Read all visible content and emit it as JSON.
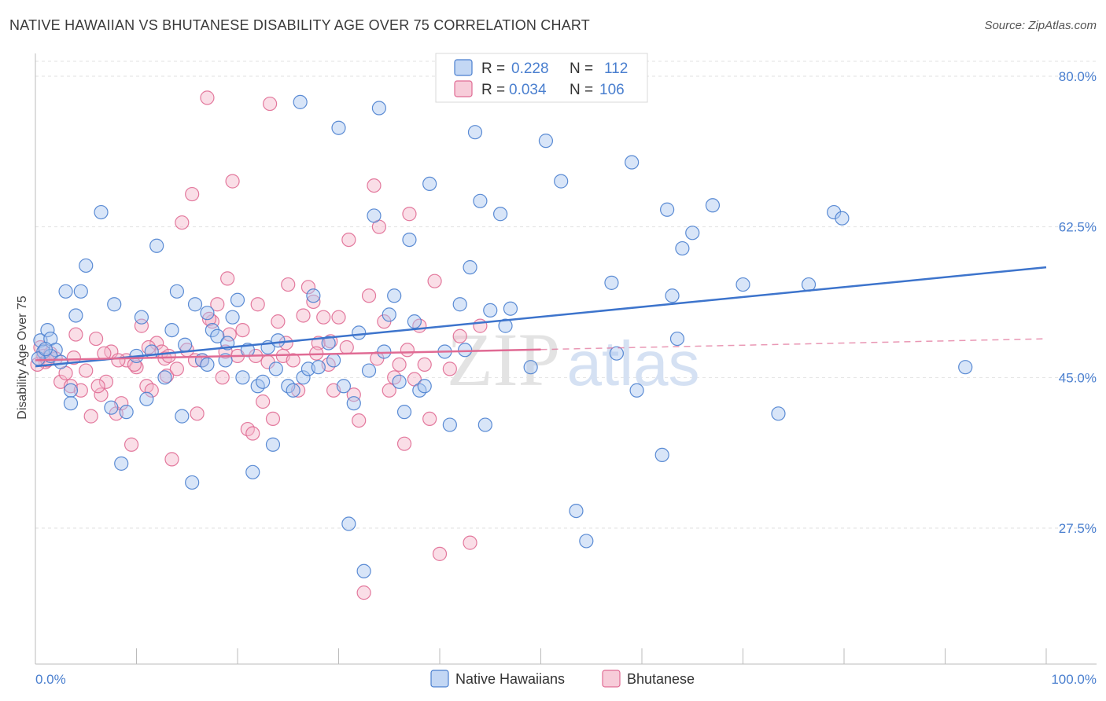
{
  "title": "NATIVE HAWAIIAN VS BHUTANESE DISABILITY AGE OVER 75 CORRELATION CHART",
  "source": "Source: ZipAtlas.com",
  "watermark": {
    "zip": "ZIP",
    "atlas": "atlas"
  },
  "colors": {
    "blue": "#4a7fcf",
    "blue_fill": "#a9c6ef",
    "pink": "#e06b94",
    "pink_fill": "#f4b6c9"
  },
  "legend": {
    "rows": [
      {
        "r_label": "R =",
        "r_value": "0.228",
        "n_label": "N =",
        "n_value": "112"
      },
      {
        "r_label": "R =",
        "r_value": "0.034",
        "n_label": "N =",
        "n_value": "106"
      }
    ]
  },
  "chart_data": {
    "type": "scatter",
    "ylabel": "Disability Age Over 75",
    "xlim": [
      0,
      100
    ],
    "ylim": [
      13.5,
      82
    ],
    "x_tick_labels": [
      "0.0%",
      "100.0%"
    ],
    "y_ticks": [
      {
        "value": 80.0,
        "label": "80.0%"
      },
      {
        "value": 62.5,
        "label": "62.5%"
      },
      {
        "value": 45.0,
        "label": "45.0%"
      },
      {
        "value": 27.5,
        "label": "27.5%"
      }
    ],
    "series": [
      {
        "name": "Native Hawaiians",
        "trend": {
          "x0": 0,
          "y0": 46.3,
          "x1": 100,
          "y1": 57.8,
          "solid_to": 100
        },
        "points": [
          [
            0.5,
            49.3
          ],
          [
            0.8,
            48.0
          ],
          [
            1.2,
            50.5
          ],
          [
            1.5,
            49.5
          ],
          [
            2.0,
            48.2
          ],
          [
            3.0,
            55.0
          ],
          [
            3.5,
            43.5
          ],
          [
            4.0,
            52.2
          ],
          [
            4.5,
            55.0
          ],
          [
            5.0,
            58.0
          ],
          [
            3.5,
            42.0
          ],
          [
            6.5,
            64.2
          ],
          [
            7.5,
            41.5
          ],
          [
            7.8,
            53.5
          ],
          [
            8.5,
            35.0
          ],
          [
            9.0,
            41.0
          ],
          [
            10.0,
            47.5
          ],
          [
            10.5,
            52.0
          ],
          [
            11.0,
            42.5
          ],
          [
            12.0,
            60.3
          ],
          [
            11.5,
            48.0
          ],
          [
            12.8,
            45.0
          ],
          [
            13.5,
            50.5
          ],
          [
            14.0,
            55.0
          ],
          [
            14.5,
            40.5
          ],
          [
            14.8,
            48.8
          ],
          [
            15.5,
            32.8
          ],
          [
            15.8,
            53.5
          ],
          [
            16.5,
            47.0
          ],
          [
            17.0,
            52.5
          ],
          [
            17.5,
            50.5
          ],
          [
            18.0,
            49.8
          ],
          [
            18.8,
            47.0
          ],
          [
            19.0,
            49.0
          ],
          [
            19.5,
            52.0
          ],
          [
            20.0,
            54.0
          ],
          [
            20.5,
            45.0
          ],
          [
            21.0,
            48.2
          ],
          [
            21.5,
            34.0
          ],
          [
            22.0,
            44.0
          ],
          [
            22.5,
            44.5
          ],
          [
            23.0,
            48.5
          ],
          [
            23.5,
            37.2
          ],
          [
            23.8,
            46.0
          ],
          [
            24.0,
            49.3
          ],
          [
            25.0,
            44.0
          ],
          [
            25.5,
            43.5
          ],
          [
            26.2,
            77.0
          ],
          [
            26.5,
            45.0
          ],
          [
            27.0,
            46.0
          ],
          [
            27.5,
            54.5
          ],
          [
            28.0,
            46.2
          ],
          [
            29.0,
            49.0
          ],
          [
            29.5,
            47.0
          ],
          [
            30.0,
            74.0
          ],
          [
            30.5,
            44.0
          ],
          [
            31.0,
            28.0
          ],
          [
            31.5,
            42.0
          ],
          [
            32.0,
            50.2
          ],
          [
            32.5,
            22.5
          ],
          [
            33.0,
            45.8
          ],
          [
            33.5,
            63.8
          ],
          [
            34.0,
            76.3
          ],
          [
            34.5,
            48.0
          ],
          [
            35.0,
            52.3
          ],
          [
            35.5,
            54.5
          ],
          [
            36.5,
            41.0
          ],
          [
            37.0,
            61.0
          ],
          [
            37.5,
            51.5
          ],
          [
            38.0,
            43.5
          ],
          [
            38.5,
            44.0
          ],
          [
            39.0,
            67.5
          ],
          [
            40.5,
            48.0
          ],
          [
            41.0,
            39.5
          ],
          [
            42.0,
            53.5
          ],
          [
            42.5,
            48.2
          ],
          [
            43.0,
            57.8
          ],
          [
            43.5,
            73.5
          ],
          [
            44.0,
            65.5
          ],
          [
            44.5,
            39.5
          ],
          [
            45.0,
            52.8
          ],
          [
            46.0,
            64.0
          ],
          [
            46.5,
            51.0
          ],
          [
            47.0,
            53.0
          ],
          [
            49.0,
            46.2
          ],
          [
            50.5,
            72.5
          ],
          [
            52.0,
            67.8
          ],
          [
            53.5,
            29.5
          ],
          [
            54.5,
            26.0
          ],
          [
            57.0,
            56.0
          ],
          [
            57.5,
            47.8
          ],
          [
            59.0,
            70.0
          ],
          [
            59.5,
            43.5
          ],
          [
            62.0,
            36.0
          ],
          [
            62.5,
            64.5
          ],
          [
            63.0,
            54.5
          ],
          [
            63.5,
            49.5
          ],
          [
            64.0,
            60.0
          ],
          [
            65.0,
            61.8
          ],
          [
            67.0,
            65.0
          ],
          [
            70.0,
            55.8
          ],
          [
            73.5,
            40.8
          ],
          [
            76.5,
            55.8
          ],
          [
            79.0,
            64.2
          ],
          [
            79.8,
            63.5
          ],
          [
            92.0,
            46.2
          ],
          [
            1.5,
            47.5
          ],
          [
            2.5,
            46.8
          ],
          [
            0.3,
            47.2
          ],
          [
            1.0,
            48.3
          ],
          [
            36.0,
            44.5
          ],
          [
            17.0,
            46.5
          ]
        ]
      },
      {
        "name": "Bhutanese",
        "trend": {
          "x0": 0,
          "y0": 47.0,
          "x1": 100,
          "y1": 49.5,
          "solid_to": 50
        },
        "points": [
          [
            0.5,
            48.5
          ],
          [
            0.8,
            47.5
          ],
          [
            1.0,
            46.8
          ],
          [
            1.5,
            47.8
          ],
          [
            2.0,
            47.2
          ],
          [
            2.5,
            44.5
          ],
          [
            3.0,
            45.5
          ],
          [
            3.5,
            44.0
          ],
          [
            4.0,
            50.0
          ],
          [
            4.5,
            43.5
          ],
          [
            5.0,
            45.8
          ],
          [
            5.5,
            40.5
          ],
          [
            6.0,
            49.5
          ],
          [
            6.5,
            43.0
          ],
          [
            7.0,
            44.5
          ],
          [
            7.5,
            48.0
          ],
          [
            8.0,
            40.8
          ],
          [
            8.5,
            42.0
          ],
          [
            9.0,
            47.0
          ],
          [
            9.5,
            37.2
          ],
          [
            10.0,
            46.2
          ],
          [
            10.5,
            51.0
          ],
          [
            11.0,
            44.0
          ],
          [
            11.5,
            43.5
          ],
          [
            12.0,
            49.0
          ],
          [
            12.5,
            48.0
          ],
          [
            13.0,
            45.2
          ],
          [
            13.5,
            35.5
          ],
          [
            14.0,
            46.0
          ],
          [
            14.5,
            63.0
          ],
          [
            15.0,
            48.2
          ],
          [
            15.5,
            66.3
          ],
          [
            16.0,
            40.8
          ],
          [
            16.5,
            47.0
          ],
          [
            17.0,
            77.5
          ],
          [
            17.5,
            51.5
          ],
          [
            18.0,
            53.5
          ],
          [
            18.5,
            45.0
          ],
          [
            19.0,
            56.5
          ],
          [
            19.5,
            67.8
          ],
          [
            20.0,
            47.5
          ],
          [
            20.5,
            50.5
          ],
          [
            21.0,
            39.0
          ],
          [
            21.5,
            38.5
          ],
          [
            22.0,
            53.5
          ],
          [
            22.5,
            42.2
          ],
          [
            23.0,
            46.8
          ],
          [
            23.5,
            40.2
          ],
          [
            24.0,
            51.5
          ],
          [
            24.5,
            47.5
          ],
          [
            25.0,
            55.8
          ],
          [
            25.5,
            47.0
          ],
          [
            26.0,
            43.5
          ],
          [
            27.0,
            55.5
          ],
          [
            27.5,
            53.8
          ],
          [
            28.0,
            49.0
          ],
          [
            28.5,
            52.0
          ],
          [
            29.0,
            46.5
          ],
          [
            29.5,
            43.5
          ],
          [
            30.0,
            52.0
          ],
          [
            31.0,
            61.0
          ],
          [
            31.5,
            43.0
          ],
          [
            32.0,
            40.0
          ],
          [
            32.5,
            20.0
          ],
          [
            33.0,
            54.5
          ],
          [
            33.5,
            67.3
          ],
          [
            34.0,
            62.5
          ],
          [
            34.5,
            51.5
          ],
          [
            35.0,
            43.5
          ],
          [
            35.5,
            45.0
          ],
          [
            36.0,
            46.5
          ],
          [
            36.5,
            37.3
          ],
          [
            37.0,
            64.0
          ],
          [
            37.5,
            44.8
          ],
          [
            38.0,
            51.0
          ],
          [
            38.5,
            46.5
          ],
          [
            39.0,
            40.2
          ],
          [
            39.5,
            56.2
          ],
          [
            40.0,
            24.5
          ],
          [
            41.0,
            46.0
          ],
          [
            42.0,
            49.8
          ],
          [
            43.0,
            25.8
          ],
          [
            44.0,
            51.0
          ],
          [
            0.2,
            46.5
          ],
          [
            1.2,
            47.0
          ],
          [
            3.8,
            47.3
          ],
          [
            6.8,
            47.8
          ],
          [
            9.8,
            46.5
          ],
          [
            12.8,
            47.2
          ],
          [
            15.8,
            47.0
          ],
          [
            18.8,
            48.0
          ],
          [
            21.8,
            47.5
          ],
          [
            24.8,
            49.0
          ],
          [
            27.8,
            47.8
          ],
          [
            30.8,
            48.5
          ],
          [
            33.8,
            47.2
          ],
          [
            36.8,
            48.2
          ],
          [
            6.2,
            44.0
          ],
          [
            8.2,
            47.0
          ],
          [
            11.2,
            48.5
          ],
          [
            13.2,
            47.5
          ],
          [
            17.2,
            51.8
          ],
          [
            19.2,
            50.0
          ],
          [
            23.2,
            76.8
          ],
          [
            26.5,
            52.2
          ],
          [
            29.2,
            49.2
          ]
        ]
      }
    ]
  },
  "bottom_legend": [
    {
      "label": "Native Hawaiians"
    },
    {
      "label": "Bhutanese"
    }
  ]
}
